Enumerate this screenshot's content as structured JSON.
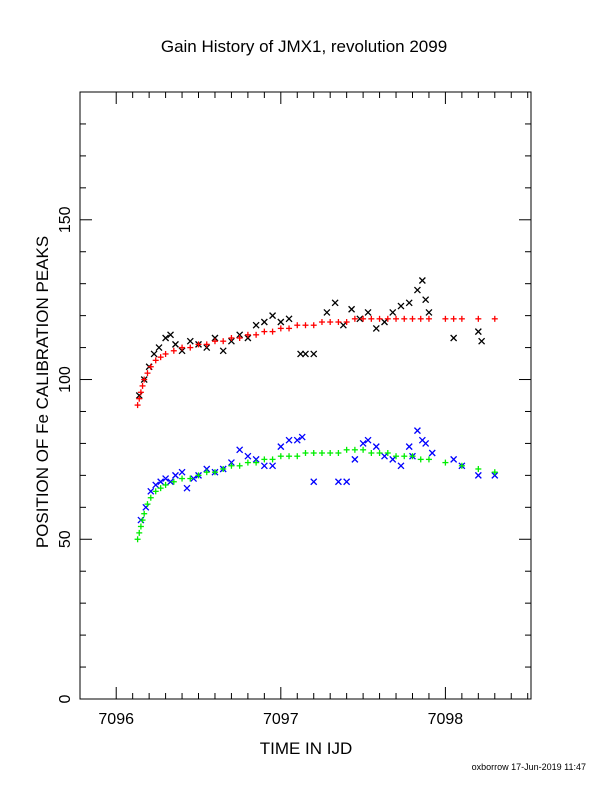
{
  "chart_data": {
    "type": "scatter",
    "title": "Gain History of JMX1, revolution 2099",
    "xlabel": "TIME IN IJD",
    "ylabel": "POSITION OF Fe CALIBRATION PEAKS",
    "xlim": [
      7095.78,
      7098.52
    ],
    "ylim": [
      0,
      190
    ],
    "x_ticks": [
      7096,
      7097,
      7098
    ],
    "x_tick_labels": [
      "7096",
      "7097",
      "7098"
    ],
    "y_ticks": [
      0,
      50,
      100,
      150
    ],
    "y_tick_labels": [
      "0",
      "50",
      "100",
      "150"
    ],
    "grid": false,
    "series": [
      {
        "marker": "x",
        "color": "#000000",
        "points": [
          [
            7096.14,
            95
          ],
          [
            7096.17,
            100
          ],
          [
            7096.2,
            104
          ],
          [
            7096.23,
            108
          ],
          [
            7096.26,
            110
          ],
          [
            7096.3,
            113
          ],
          [
            7096.33,
            114
          ],
          [
            7096.36,
            111
          ],
          [
            7096.4,
            109
          ],
          [
            7096.45,
            112
          ],
          [
            7096.5,
            111
          ],
          [
            7096.55,
            110
          ],
          [
            7096.6,
            113
          ],
          [
            7096.65,
            109
          ],
          [
            7096.7,
            112
          ],
          [
            7096.75,
            114
          ],
          [
            7096.8,
            113
          ],
          [
            7096.85,
            117
          ],
          [
            7096.9,
            118
          ],
          [
            7096.95,
            120
          ],
          [
            7097.0,
            118
          ],
          [
            7097.05,
            119
          ],
          [
            7097.12,
            108
          ],
          [
            7097.15,
            108
          ],
          [
            7097.2,
            108
          ],
          [
            7097.28,
            121
          ],
          [
            7097.33,
            124
          ],
          [
            7097.38,
            117
          ],
          [
            7097.43,
            122
          ],
          [
            7097.48,
            119
          ],
          [
            7097.53,
            121
          ],
          [
            7097.58,
            116
          ],
          [
            7097.63,
            118
          ],
          [
            7097.68,
            121
          ],
          [
            7097.73,
            123
          ],
          [
            7097.78,
            124
          ],
          [
            7097.83,
            128
          ],
          [
            7097.86,
            131
          ],
          [
            7097.88,
            125
          ],
          [
            7097.9,
            121
          ],
          [
            7098.05,
            113
          ],
          [
            7098.2,
            115
          ],
          [
            7098.22,
            112
          ]
        ]
      },
      {
        "marker": "+",
        "color": "#ff0000",
        "points": [
          [
            7096.13,
            92
          ],
          [
            7096.14,
            94
          ],
          [
            7096.15,
            96
          ],
          [
            7096.16,
            98
          ],
          [
            7096.17,
            100
          ],
          [
            7096.19,
            102
          ],
          [
            7096.21,
            104
          ],
          [
            7096.24,
            106
          ],
          [
            7096.27,
            107
          ],
          [
            7096.3,
            108
          ],
          [
            7096.35,
            109
          ],
          [
            7096.4,
            110
          ],
          [
            7096.45,
            110
          ],
          [
            7096.5,
            111
          ],
          [
            7096.55,
            111
          ],
          [
            7096.6,
            112
          ],
          [
            7096.65,
            112
          ],
          [
            7096.7,
            113
          ],
          [
            7096.75,
            113
          ],
          [
            7096.8,
            114
          ],
          [
            7096.85,
            114
          ],
          [
            7096.9,
            115
          ],
          [
            7096.95,
            115
          ],
          [
            7097.0,
            116
          ],
          [
            7097.05,
            116
          ],
          [
            7097.1,
            117
          ],
          [
            7097.15,
            117
          ],
          [
            7097.2,
            117
          ],
          [
            7097.25,
            118
          ],
          [
            7097.3,
            118
          ],
          [
            7097.35,
            118
          ],
          [
            7097.4,
            118
          ],
          [
            7097.45,
            119
          ],
          [
            7097.5,
            119
          ],
          [
            7097.55,
            119
          ],
          [
            7097.6,
            119
          ],
          [
            7097.65,
            119
          ],
          [
            7097.7,
            119
          ],
          [
            7097.75,
            119
          ],
          [
            7097.8,
            119
          ],
          [
            7097.85,
            119
          ],
          [
            7097.9,
            119
          ],
          [
            7098.0,
            119
          ],
          [
            7098.05,
            119
          ],
          [
            7098.1,
            119
          ],
          [
            7098.2,
            119
          ],
          [
            7098.3,
            119
          ]
        ]
      },
      {
        "marker": "x",
        "color": "#0000ff",
        "points": [
          [
            7096.15,
            56
          ],
          [
            7096.18,
            60
          ],
          [
            7096.21,
            65
          ],
          [
            7096.24,
            67
          ],
          [
            7096.27,
            68
          ],
          [
            7096.3,
            69
          ],
          [
            7096.33,
            68
          ],
          [
            7096.36,
            70
          ],
          [
            7096.4,
            71
          ],
          [
            7096.43,
            66
          ],
          [
            7096.47,
            69
          ],
          [
            7096.5,
            70
          ],
          [
            7096.55,
            72
          ],
          [
            7096.6,
            71
          ],
          [
            7096.65,
            72
          ],
          [
            7096.7,
            74
          ],
          [
            7096.75,
            78
          ],
          [
            7096.8,
            76
          ],
          [
            7096.85,
            75
          ],
          [
            7096.9,
            73
          ],
          [
            7096.95,
            73
          ],
          [
            7097.0,
            79
          ],
          [
            7097.05,
            81
          ],
          [
            7097.1,
            81
          ],
          [
            7097.13,
            82
          ],
          [
            7097.2,
            68
          ],
          [
            7097.35,
            68
          ],
          [
            7097.4,
            68
          ],
          [
            7097.45,
            75
          ],
          [
            7097.5,
            80
          ],
          [
            7097.53,
            81
          ],
          [
            7097.58,
            79
          ],
          [
            7097.63,
            76
          ],
          [
            7097.68,
            75
          ],
          [
            7097.73,
            73
          ],
          [
            7097.78,
            79
          ],
          [
            7097.8,
            76
          ],
          [
            7097.83,
            84
          ],
          [
            7097.86,
            81
          ],
          [
            7097.88,
            80
          ],
          [
            7097.92,
            77
          ],
          [
            7098.05,
            75
          ],
          [
            7098.1,
            73
          ],
          [
            7098.2,
            70
          ],
          [
            7098.3,
            70
          ]
        ]
      },
      {
        "marker": "+",
        "color": "#00ee00",
        "points": [
          [
            7096.13,
            50
          ],
          [
            7096.14,
            52
          ],
          [
            7096.15,
            54
          ],
          [
            7096.16,
            56
          ],
          [
            7096.17,
            58
          ],
          [
            7096.19,
            61
          ],
          [
            7096.21,
            63
          ],
          [
            7096.24,
            65
          ],
          [
            7096.27,
            66
          ],
          [
            7096.3,
            67
          ],
          [
            7096.35,
            68
          ],
          [
            7096.4,
            69
          ],
          [
            7096.45,
            69
          ],
          [
            7096.5,
            70
          ],
          [
            7096.55,
            71
          ],
          [
            7096.6,
            71
          ],
          [
            7096.65,
            72
          ],
          [
            7096.7,
            73
          ],
          [
            7096.75,
            73
          ],
          [
            7096.8,
            74
          ],
          [
            7096.85,
            74
          ],
          [
            7096.9,
            75
          ],
          [
            7096.95,
            75
          ],
          [
            7097.0,
            76
          ],
          [
            7097.05,
            76
          ],
          [
            7097.1,
            76
          ],
          [
            7097.15,
            77
          ],
          [
            7097.2,
            77
          ],
          [
            7097.25,
            77
          ],
          [
            7097.3,
            77
          ],
          [
            7097.35,
            77
          ],
          [
            7097.4,
            78
          ],
          [
            7097.45,
            78
          ],
          [
            7097.5,
            78
          ],
          [
            7097.55,
            77
          ],
          [
            7097.6,
            77
          ],
          [
            7097.65,
            77
          ],
          [
            7097.7,
            76
          ],
          [
            7097.75,
            76
          ],
          [
            7097.8,
            76
          ],
          [
            7097.85,
            75
          ],
          [
            7097.9,
            75
          ],
          [
            7098.0,
            74
          ],
          [
            7098.1,
            73
          ],
          [
            7098.2,
            72
          ],
          [
            7098.3,
            71
          ]
        ]
      }
    ],
    "annotations": [
      {
        "text": "oxborrow 17-Jun-2019 11:47",
        "position": "bottom-right"
      }
    ]
  }
}
